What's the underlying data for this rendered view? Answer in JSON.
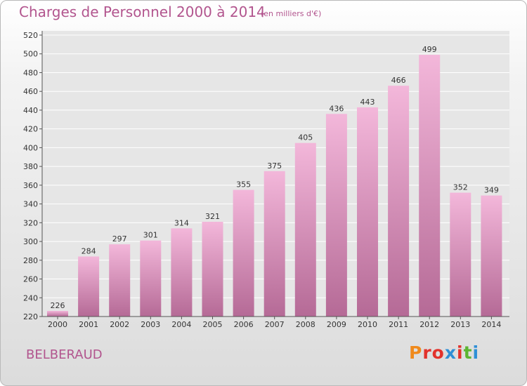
{
  "header": {
    "title": "Charges de Personnel 2000 à 2014",
    "subtitle": "(en milliers d'€)"
  },
  "footer": {
    "commune": "BELBERAUD",
    "logo": "Proxiti",
    "logo_colors": [
      "#f08a1c",
      "#e2322c",
      "#e2322c",
      "#2e8fd6",
      "#e2322c",
      "#5cb531",
      "#2e8fd6"
    ]
  },
  "colors": {
    "bar_top": "#f3b7da",
    "bar_bottom": "#b56a96",
    "text": "#b2558e",
    "axis_text": "#333333",
    "grid": "#ffffff"
  },
  "chart_data": {
    "type": "bar",
    "categories": [
      "2000",
      "2001",
      "2002",
      "2003",
      "2004",
      "2005",
      "2006",
      "2007",
      "2008",
      "2009",
      "2010",
      "2011",
      "2012",
      "2013",
      "2014"
    ],
    "values": [
      226,
      284,
      297,
      301,
      314,
      321,
      355,
      375,
      405,
      436,
      443,
      466,
      499,
      352,
      349
    ],
    "ylim": [
      220,
      520
    ],
    "yticks": [
      220,
      240,
      260,
      280,
      300,
      320,
      340,
      360,
      380,
      400,
      420,
      440,
      460,
      480,
      500,
      520
    ],
    "grid": true,
    "data_labels": true
  }
}
